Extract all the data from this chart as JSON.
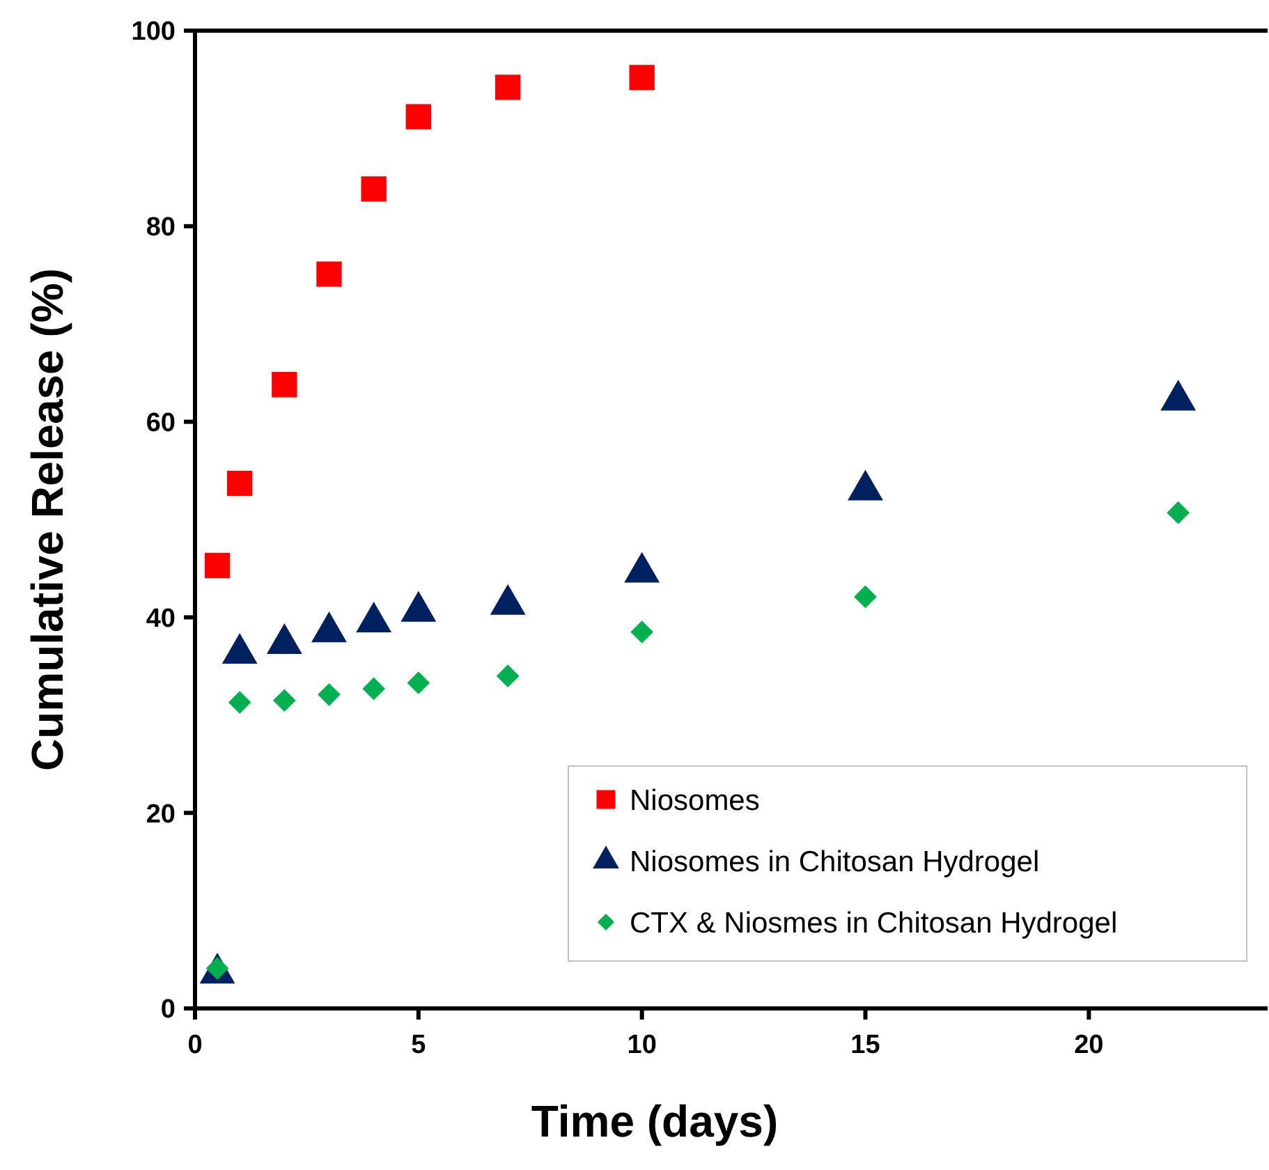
{
  "chart_data": {
    "type": "scatter",
    "xlabel": "Time (days)",
    "ylabel": "Cumulative Release (%)",
    "xlim": [
      0,
      24
    ],
    "xticks": [
      0,
      5,
      10,
      15,
      20
    ],
    "ylim": [
      0,
      100
    ],
    "yticks": [
      0,
      20,
      40,
      60,
      80,
      100
    ],
    "grid": false,
    "legend": "bottom right",
    "series": [
      {
        "name": "Niosomes",
        "color": "#ff0000",
        "marker": "square",
        "x": [
          0.5,
          1,
          2,
          3,
          4,
          5,
          7,
          10
        ],
        "values": [
          45.3,
          53.7,
          63.8,
          75.1,
          83.8,
          91.2,
          94.2,
          95.2
        ]
      },
      {
        "name": "Niosomes in Chitosan Hydrogel",
        "color": "#002060",
        "marker": "triangle",
        "x": [
          0.5,
          1,
          2,
          3,
          4,
          5,
          7,
          10,
          15,
          22
        ],
        "values": [
          3.6,
          36.3,
          37.3,
          38.5,
          39.5,
          40.6,
          41.3,
          44.6,
          53,
          62.2
        ]
      },
      {
        "name": "CTX & Niosmes in Chitosan Hydrogel",
        "color": "#00b050",
        "marker": "diamond",
        "x": [
          0.5,
          1,
          2,
          3,
          4,
          5,
          7,
          10,
          15,
          22
        ],
        "values": [
          4.1,
          31.3,
          31.5,
          32.1,
          32.7,
          33.3,
          34,
          38.5,
          42.1,
          50.7
        ]
      }
    ]
  }
}
